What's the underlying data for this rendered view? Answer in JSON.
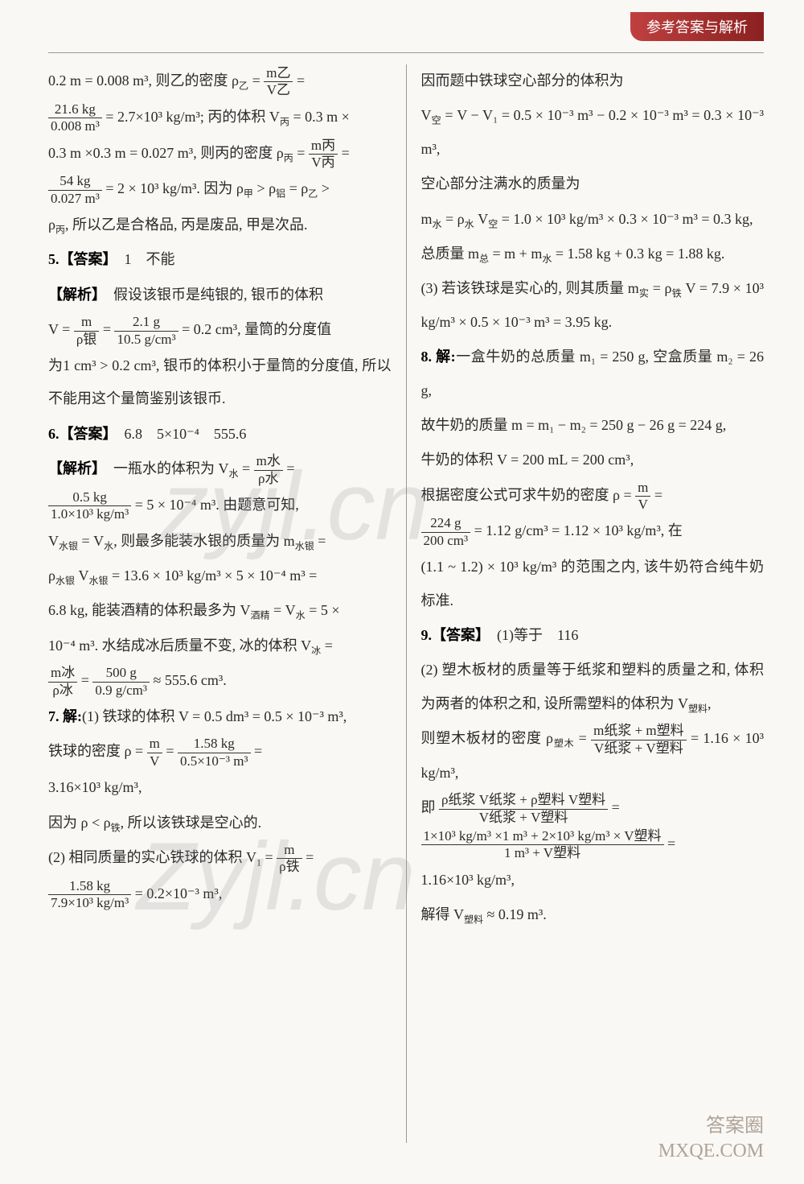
{
  "header": {
    "title": "参考答案与解析"
  },
  "watermarks": {
    "wm1": "zyjl.cn",
    "wm2": "Zyjl.cn"
  },
  "footer": {
    "line1": "答案圈",
    "line2": "MXQE.COM"
  },
  "leftColumn": {
    "p1a": "0.2 m = 0.008 m³, 则乙的密度 ρ",
    "p1sub1": "乙",
    "p1b": " = ",
    "frac1_num": "m乙",
    "frac1_den": "V乙",
    "p1c": " = ",
    "frac2_num": "21.6 kg",
    "frac2_den": "0.008 m³",
    "p2a": " = 2.7×10³ kg/m³; 丙的体积 V",
    "p2sub": "丙",
    "p2b": " = 0.3 m ×",
    "p3a": "0.3 m ×0.3 m = 0.027 m³, 则丙的密度 ρ",
    "p3sub": "丙",
    "p3b": " = ",
    "frac3_num": "m丙",
    "frac3_den": "V丙",
    "p3c": " = ",
    "frac4_num": "54 kg",
    "frac4_den": "0.027 m³",
    "p4a": " = 2 × 10³ kg/m³. 因为 ρ",
    "p4sub1": "甲",
    "p4b": " > ρ",
    "p4sub2": "铝",
    "p4c": " = ρ",
    "p4sub3": "乙",
    "p4d": " >",
    "p5a": "ρ",
    "p5sub": "丙",
    "p5b": ", 所以乙是合格品, 丙是废品, 甲是次品.",
    "q5_label": "5.【答案】",
    "q5_ans": "　1　不能",
    "q5_jiexi": "【解析】",
    "q5_text1": "　假设该银币是纯银的, 银币的体积",
    "q5_v": "V = ",
    "frac5_num": "m",
    "frac5_den": "ρ银",
    "q5_eq": " = ",
    "frac6_num": "2.1 g",
    "frac6_den": "10.5 g/cm³",
    "q5_text2": " = 0.2 cm³, 量筒的分度值",
    "q5_text3": "为1 cm³ > 0.2 cm³, 银币的体积小于量筒的分度值, 所以不能用这个量筒鉴别该银币.",
    "q6_label": "6.【答案】",
    "q6_ans": "　6.8　5×10⁻⁴　555.6",
    "q6_jiexi": "【解析】",
    "q6_text1": "　一瓶水的体积为 V",
    "q6_sub1": "水",
    "q6_text1b": " = ",
    "frac7_num": "m水",
    "frac7_den": "ρ水",
    "q6_text1c": " = ",
    "frac8_num": "0.5 kg",
    "frac8_den": "1.0×10³ kg/m³",
    "q6_text2": " = 5 × 10⁻⁴ m³. 由题意可知,",
    "q6_text3a": "V",
    "q6_sub3a": "水银",
    "q6_text3b": " = V",
    "q6_sub3b": "水",
    "q6_text3c": ", 则最多能装水银的质量为 m",
    "q6_sub3c": "水银",
    "q6_text3d": " = ",
    "q6_text4a": "ρ",
    "q6_sub4a": "水银",
    "q6_text4b": " V",
    "q6_sub4b": "水银",
    "q6_text4c": " = 13.6 × 10³ kg/m³ × 5 × 10⁻⁴ m³ =",
    "q6_text5a": "6.8 kg, 能装酒精的体积最多为 V",
    "q6_sub5": "酒精",
    "q6_text5b": " = V",
    "q6_sub5b": "水",
    "q6_text5c": " = 5 ×",
    "q6_text6a": "10⁻⁴ m³. 水结成冰后质量不变, 冰的体积 V",
    "q6_sub6": "冰",
    "q6_text6b": " = ",
    "frac9_num": "m冰",
    "frac9_den": "ρ冰",
    "q6_text7a": " = ",
    "frac10_num": "500 g",
    "frac10_den": "0.9 g/cm³",
    "q6_text7b": " ≈ 555.6 cm³.",
    "q7_label": "7. 解:",
    "q7_text1": "(1) 铁球的体积 V = 0.5 dm³ = 0.5 × 10⁻³ m³,",
    "q7_text2a": "铁球的密度 ρ = ",
    "frac11_num": "m",
    "frac11_den": "V",
    "q7_text2b": " = ",
    "frac12_num": "1.58 kg",
    "frac12_den": "0.5×10⁻³ m³",
    "q7_text2c": " = ",
    "q7_text3": "3.16×10³ kg/m³,",
    "q7_text4a": "因为 ρ < ρ",
    "q7_sub4": "铁",
    "q7_text4b": ", 所以该铁球是空心的.",
    "q7_text5a": "(2) 相同质量的实心铁球的体积 V",
    "q7_sub5": "1",
    "q7_text5b": " = ",
    "frac13_num": "m",
    "frac13_den": "ρ铁",
    "q7_text5c": " = ",
    "frac14_num": "1.58 kg",
    "frac14_den": "7.9×10³ kg/m³",
    "q7_text6": " = 0.2×10⁻³ m³,"
  },
  "rightColumn": {
    "p1": "因而题中铁球空心部分的体积为",
    "p2a": "V",
    "p2sub": "空",
    "p2b": " = V − V₁ = 0.5 × 10⁻³ m³ − 0.2 × 10⁻³ m³ = 0.3 × 10⁻³ m³,",
    "p3": "空心部分注满水的质量为",
    "p4a": "m",
    "p4sub1": "水",
    "p4b": " = ρ",
    "p4sub2": "水",
    "p4c": " V",
    "p4sub3": "空",
    "p4d": " = 1.0 × 10³ kg/m³ × 0.3 × 10⁻³ m³ = 0.3 kg,",
    "p5a": "总质量 m",
    "p5sub": "总",
    "p5b": " = m + m",
    "p5sub2": "水",
    "p5c": " = 1.58 kg + 0.3 kg = 1.88 kg.",
    "p6a": "(3) 若该铁球是实心的, 则其质量 m",
    "p6sub": "实",
    "p6b": " = ρ",
    "p6sub2": "铁",
    "p6c": " V = 7.9 × 10³ kg/m³ × 0.5 × 10⁻³ m³ = 3.95 kg.",
    "q8_label": "8. 解:",
    "q8_text1": "一盒牛奶的总质量 m₁ = 250 g, 空盒质量 m₂ = 26 g,",
    "q8_text2": "故牛奶的质量 m = m₁ − m₂ = 250 g − 26 g = 224 g,",
    "q8_text3": "牛奶的体积 V = 200 mL = 200 cm³,",
    "q8_text4a": "根据密度公式可求牛奶的密度 ρ = ",
    "frac15_num": "m",
    "frac15_den": "V",
    "q8_text4b": " = ",
    "frac16_num": "224 g",
    "frac16_den": "200 cm³",
    "q8_text5": " = 1.12 g/cm³ = 1.12 × 10³ kg/m³, 在",
    "q8_text6": "(1.1 ~ 1.2) × 10³ kg/m³ 的范围之内, 该牛奶符合纯牛奶标准.",
    "q9_label": "9.【答案】",
    "q9_ans": "　(1)等于　116",
    "q9_text1": "(2) 塑木板材的质量等于纸浆和塑料的质量之和, 体积为两者的体积之和, 设所需塑料的体积为 V",
    "q9_sub1": "塑料",
    "q9_text1b": ",",
    "q9_text2a": "则塑木板材的密度 ρ",
    "q9_sub2": "塑木",
    "q9_text2b": " = ",
    "frac17_num": "m纸浆 + m塑料",
    "frac17_den": "V纸浆 + V塑料",
    "q9_text2c": " = 1.16 × 10³ kg/m³,",
    "q9_text3a": "即",
    "frac18_num": "ρ纸浆 V纸浆 + ρ塑料 V塑料",
    "frac18_den": "V纸浆 + V塑料",
    "q9_text3b": " = ",
    "frac19_num": "1×10³ kg/m³ ×1 m³ + 2×10³ kg/m³ × V塑料",
    "frac19_den": "1 m³ + V塑料",
    "q9_text4": " = ",
    "q9_text5": "1.16×10³ kg/m³,",
    "q9_text6a": "解得 V",
    "q9_sub6": "塑料",
    "q9_text6b": " ≈ 0.19 m³."
  }
}
